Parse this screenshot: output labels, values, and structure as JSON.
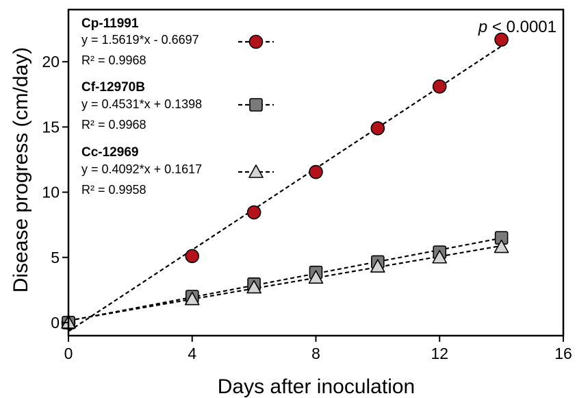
{
  "chart_data": {
    "type": "scatter",
    "xlabel": "Days after inoculation",
    "ylabel": "Disease progress (cm/day)",
    "xlim": [
      0,
      16
    ],
    "ylim": [
      -1,
      24
    ],
    "xticks": [
      "0",
      "4",
      "8",
      "12",
      "16"
    ],
    "yticks": [
      "0",
      "5",
      "10",
      "15",
      "20"
    ],
    "annotation": {
      "italic": "p",
      "text": "< 0.0001"
    },
    "series": [
      {
        "name": "Cp-11991",
        "equation": "y = 1.5619*x - 0.6697",
        "r2": "R² = 0.9968",
        "marker": "circle",
        "color": "#b3121b",
        "x": [
          0,
          4,
          6,
          8,
          10,
          12,
          14
        ],
        "y": [
          0,
          5.1,
          8.45,
          11.55,
          14.9,
          18.1,
          21.7
        ],
        "fit": [
          1.5619,
          -0.6697
        ]
      },
      {
        "name": "Cf-12970B",
        "equation": "y = 0.4531*x + 0.1398",
        "r2": "R² = 0.9968",
        "marker": "square",
        "color": "#7a7a7a",
        "x": [
          0,
          4,
          6,
          8,
          10,
          12,
          14
        ],
        "y": [
          0,
          2.0,
          2.95,
          3.85,
          4.65,
          5.4,
          6.5
        ],
        "fit": [
          0.4531,
          0.1398
        ]
      },
      {
        "name": "Cc-12969",
        "equation": "y = 0.4092*x + 0.1617",
        "r2": "R² = 0.9958",
        "marker": "triangle",
        "color": "#d4d4d4",
        "x": [
          0,
          4,
          6,
          8,
          10,
          12,
          14
        ],
        "y": [
          0,
          1.8,
          2.7,
          3.45,
          4.3,
          5.0,
          5.8
        ],
        "fit": [
          0.4092,
          0.1617
        ]
      }
    ]
  }
}
